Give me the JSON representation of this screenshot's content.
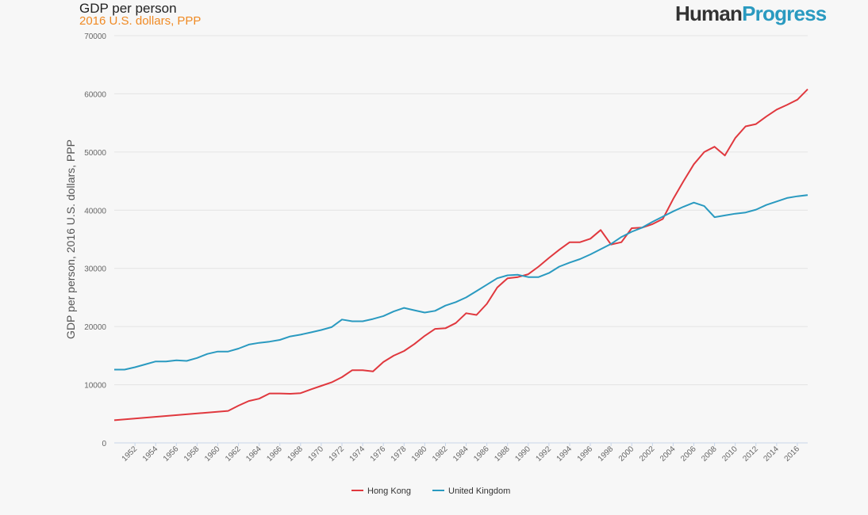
{
  "header": {
    "title": "GDP per person",
    "subtitle": "2016 U.S. dollars, PPP"
  },
  "brand": {
    "part1": "Human",
    "part2": "Progress"
  },
  "colors": {
    "hong_kong": "#e0383e",
    "united_kingdom": "#2a9ac0",
    "subtitle": "#f08a24",
    "brand_accent": "#2a9ac0",
    "grid": "#e4e4e4"
  },
  "chart_data": {
    "type": "line",
    "title": "GDP per person",
    "subtitle": "2016 U.S. dollars, PPP",
    "ylabel": "GDP per person, 2016 U.S. dollars, PPP",
    "xlabel": "",
    "ylim": [
      0,
      70000
    ],
    "xlim": [
      1950,
      2017
    ],
    "grid": true,
    "legend_position": "bottom",
    "y_ticks": [
      "0",
      "10000",
      "20000",
      "30000",
      "40000",
      "50000",
      "60000",
      "70000"
    ],
    "x_ticks": [
      "1952",
      "1954",
      "1956",
      "1958",
      "1960",
      "1962",
      "1964",
      "1966",
      "1968",
      "1970",
      "1972",
      "1974",
      "1976",
      "1978",
      "1980",
      "1982",
      "1984",
      "1986",
      "1988",
      "1990",
      "1992",
      "1994",
      "1996",
      "1998",
      "2000",
      "2002",
      "2004",
      "2006",
      "2008",
      "2010",
      "2012",
      "2014",
      "2016"
    ],
    "series": [
      {
        "name": "Hong Kong",
        "x": [
          1950,
          1961,
          1962,
          1963,
          1964,
          1965,
          1966,
          1967,
          1968,
          1969,
          1970,
          1971,
          1972,
          1973,
          1974,
          1975,
          1976,
          1977,
          1978,
          1979,
          1980,
          1981,
          1982,
          1983,
          1984,
          1985,
          1986,
          1987,
          1988,
          1989,
          1990,
          1991,
          1992,
          1993,
          1994,
          1995,
          1996,
          1997,
          1998,
          1999,
          2000,
          2001,
          2002,
          2003,
          2004,
          2005,
          2006,
          2007,
          2008,
          2009,
          2010,
          2011,
          2012,
          2013,
          2014,
          2015,
          2016,
          2017
        ],
        "values": [
          3900,
          5500,
          6400,
          7200,
          7600,
          8500,
          8500,
          8450,
          8550,
          9200,
          9800,
          10400,
          11300,
          12500,
          12500,
          12300,
          13900,
          15000,
          15800,
          17000,
          18400,
          19600,
          19700,
          20600,
          22300,
          22000,
          23900,
          26700,
          28300,
          28500,
          29000,
          30300,
          31800,
          33200,
          34500,
          34500,
          35100,
          36600,
          34100,
          34500,
          36900,
          37000,
          37600,
          38500,
          41900,
          45000,
          47900,
          50000,
          50900,
          49400,
          52400,
          54400,
          54800,
          56100,
          57300,
          58100,
          59000,
          60800
        ]
      },
      {
        "name": "United Kingdom",
        "x": [
          1950,
          1951,
          1952,
          1953,
          1954,
          1955,
          1956,
          1957,
          1958,
          1959,
          1960,
          1961,
          1962,
          1963,
          1964,
          1965,
          1966,
          1967,
          1968,
          1969,
          1970,
          1971,
          1972,
          1973,
          1974,
          1975,
          1976,
          1977,
          1978,
          1979,
          1980,
          1981,
          1982,
          1983,
          1984,
          1985,
          1986,
          1987,
          1988,
          1989,
          1990,
          1991,
          1992,
          1993,
          1994,
          1995,
          1996,
          1997,
          1998,
          1999,
          2000,
          2001,
          2002,
          2003,
          2004,
          2005,
          2006,
          2007,
          2008,
          2009,
          2010,
          2011,
          2012,
          2013,
          2014,
          2015,
          2016,
          2017
        ],
        "values": [
          12600,
          12600,
          13000,
          13500,
          14000,
          14000,
          14200,
          14100,
          14600,
          15300,
          15700,
          15700,
          16200,
          16900,
          17200,
          17400,
          17700,
          18300,
          18600,
          19000,
          19400,
          19900,
          21200,
          20900,
          20900,
          21300,
          21800,
          22600,
          23200,
          22800,
          22400,
          22700,
          23600,
          24200,
          25000,
          26100,
          27200,
          28300,
          28800,
          28900,
          28500,
          28500,
          29200,
          30300,
          31000,
          31600,
          32400,
          33300,
          34200,
          35400,
          36300,
          37000,
          38000,
          38900,
          39800,
          40600,
          41300,
          40700,
          38800,
          39100,
          39400,
          39600,
          40100,
          40900,
          41500,
          42100,
          42400,
          42600
        ]
      }
    ]
  }
}
